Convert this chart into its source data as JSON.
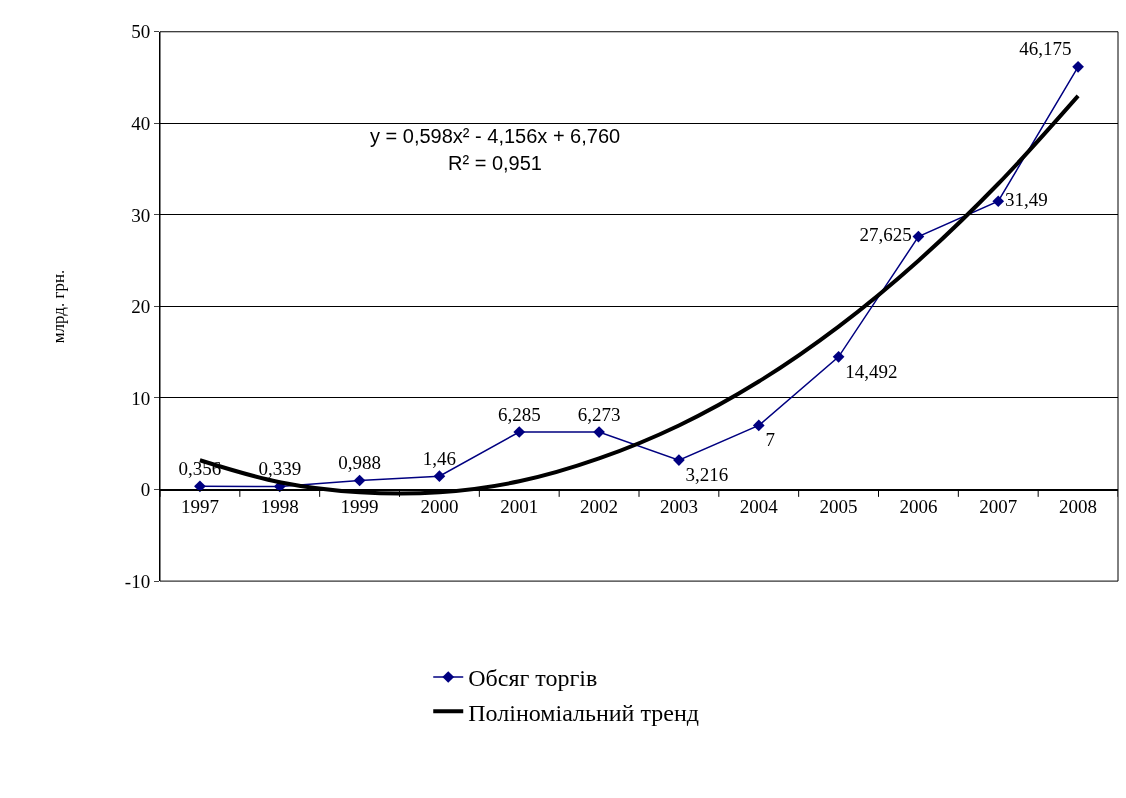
{
  "chart_data": {
    "type": "line",
    "categories": [
      "1997",
      "1998",
      "1999",
      "2000",
      "2001",
      "2002",
      "2003",
      "2004",
      "2005",
      "2006",
      "2007",
      "2008"
    ],
    "ylabel": "млрд. грн.",
    "ylim": [
      -10,
      50
    ],
    "yticks": [
      -10,
      0,
      10,
      20,
      30,
      40,
      50
    ],
    "grid": "y",
    "legend": "bottom",
    "series": [
      {
        "name": "Обсяг торгів",
        "color": "#000080",
        "marker": "diamond",
        "values": [
          0.356,
          0.339,
          0.988,
          1.46,
          6.285,
          6.273,
          3.216,
          7,
          14.492,
          27.625,
          31.49,
          46.175
        ],
        "value_labels": [
          "0,356",
          "0,339",
          "0,988",
          "1,46",
          "6,285",
          "6,273",
          "3,216",
          "7",
          "14,492",
          "27,625",
          "31,49",
          "46,175"
        ]
      },
      {
        "name": "Поліноміальний тренд",
        "type": "line",
        "color": "#000000",
        "marker": "none",
        "values": [
          3.2,
          0.8,
          -0.3,
          -0.3,
          0.9,
          3.4,
          7.0,
          11.8,
          17.8,
          25.0,
          33.4,
          43.0
        ]
      }
    ],
    "annotations": [
      "y = 0,598x² - 4,156x + 6,760",
      "R² = 0,951"
    ]
  }
}
